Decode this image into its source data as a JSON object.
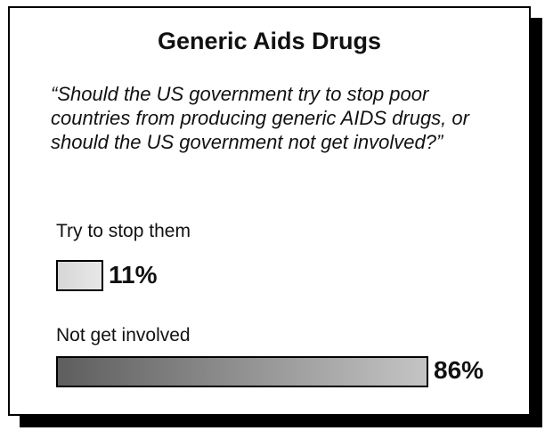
{
  "chart_data": {
    "type": "bar",
    "orientation": "horizontal",
    "title": "Generic Aids Drugs",
    "question": "“Should the US government try to stop poor countries from producing generic AIDS drugs, or should the US government not get involved?”",
    "categories": [
      "Try to stop them",
      "Not get involved"
    ],
    "values": [
      11,
      86
    ],
    "value_labels": [
      "11%",
      "86%"
    ],
    "xlim": [
      0,
      100
    ],
    "grid": false,
    "legend": "none"
  }
}
